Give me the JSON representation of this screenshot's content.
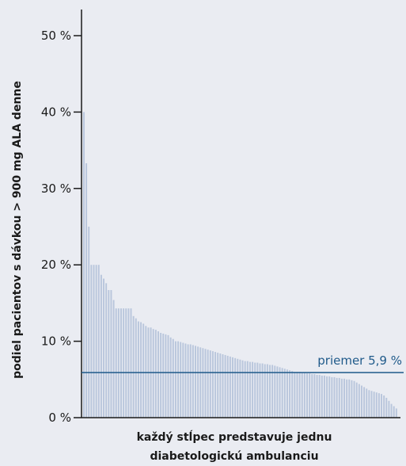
{
  "chart_data": {
    "type": "bar",
    "ylabel": "podiel pacientov s dávkou > 900 mg ALA denne",
    "xlabel_lines": [
      "každý stĺpec predstavuje jednu",
      "diabetologickú ambulanciu"
    ],
    "ylim": [
      0,
      50
    ],
    "yticks": [
      0,
      10,
      20,
      30,
      40,
      50
    ],
    "ytick_labels": [
      "0 %",
      "10 %",
      "20 %",
      "30 %",
      "40 %",
      "50 %"
    ],
    "grid": false,
    "colors": {
      "bar": "#b9c6dc",
      "reference": "#1f5a8a",
      "axis": "#1a1a1a",
      "background": "#eaecf2"
    },
    "reference_line": {
      "value": 5.9,
      "label": "priemer 5,9 %"
    },
    "values": [
      40.0,
      33.3,
      25.0,
      20.0,
      20.0,
      20.0,
      20.0,
      18.7,
      18.2,
      17.6,
      16.7,
      16.7,
      15.4,
      14.3,
      14.3,
      14.3,
      14.3,
      14.3,
      14.3,
      14.3,
      13.3,
      13.0,
      12.6,
      12.5,
      12.3,
      12.0,
      11.8,
      11.8,
      11.6,
      11.5,
      11.3,
      11.1,
      11.0,
      10.9,
      10.8,
      10.5,
      10.3,
      10.0,
      10.0,
      9.9,
      9.8,
      9.7,
      9.6,
      9.6,
      9.5,
      9.4,
      9.3,
      9.2,
      9.1,
      9.0,
      8.9,
      8.8,
      8.7,
      8.6,
      8.5,
      8.4,
      8.3,
      8.2,
      8.1,
      8.0,
      7.9,
      7.8,
      7.7,
      7.6,
      7.5,
      7.4,
      7.4,
      7.3,
      7.3,
      7.2,
      7.2,
      7.1,
      7.1,
      7.0,
      7.0,
      6.9,
      6.9,
      6.8,
      6.7,
      6.6,
      6.5,
      6.4,
      6.3,
      6.2,
      6.1,
      6.0,
      6.0,
      6.0,
      5.9,
      5.9,
      5.8,
      5.8,
      5.7,
      5.7,
      5.6,
      5.6,
      5.5,
      5.5,
      5.4,
      5.4,
      5.3,
      5.3,
      5.2,
      5.2,
      5.1,
      5.1,
      5.0,
      5.0,
      4.9,
      4.8,
      4.6,
      4.4,
      4.2,
      4.0,
      3.8,
      3.6,
      3.5,
      3.4,
      3.3,
      3.2,
      3.1,
      2.9,
      2.6,
      2.2,
      1.8,
      1.5,
      1.2
    ]
  }
}
